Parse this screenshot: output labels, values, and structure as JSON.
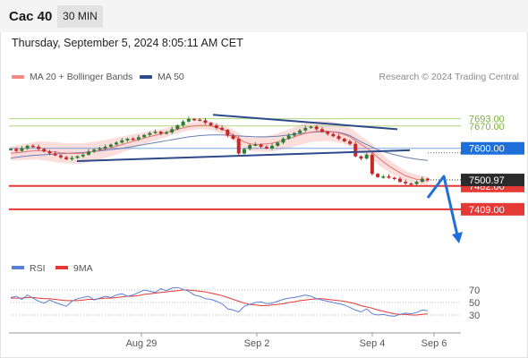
{
  "header": {
    "title": "Cac 40",
    "timeframe": "30 MIN"
  },
  "datetime": "Thursday, September 5, 2024 8:05:11 AM CET",
  "legend": {
    "items": [
      {
        "label": "MA 20 + Bollinger Bands",
        "color": "#f28b82"
      },
      {
        "label": "MA 50",
        "color": "#2d4a8a"
      }
    ],
    "credit": "Research © 2024 Trading Central"
  },
  "colors": {
    "up": "#2e7d32",
    "down": "#c62828",
    "resistance": "#aed581",
    "support": "#e53935",
    "pivot": "#1e6fd9",
    "trend": "#2d4a8a",
    "rsi": "#5c7fd6",
    "rsi_ma": "#e53935"
  },
  "chart_data": [
    {
      "type": "candlestick",
      "title": "Cac 40",
      "timeframe": "30 MIN",
      "x_ticks": [
        "Aug 29",
        "Sep 2",
        "Sep 4",
        "Sep 6"
      ],
      "ylim": [
        7330,
        7790
      ],
      "levels": [
        {
          "value": 7693.0,
          "label": "7693.00",
          "kind": "resistance"
        },
        {
          "value": 7670.0,
          "label": "7670.00",
          "kind": "resistance"
        },
        {
          "value": 7600.0,
          "label": "7600.00",
          "kind": "pivot"
        },
        {
          "value": 7482.0,
          "label": "7482.00",
          "kind": "support"
        },
        {
          "value": 7409.0,
          "label": "7409.00",
          "kind": "support"
        }
      ],
      "last_price": {
        "value": 7500.97,
        "label": "7500.97"
      },
      "close_series": [
        7598,
        7592,
        7600,
        7608,
        7605,
        7598,
        7590,
        7584,
        7578,
        7572,
        7566,
        7570,
        7575,
        7580,
        7590,
        7596,
        7600,
        7605,
        7612,
        7618,
        7625,
        7630,
        7628,
        7635,
        7642,
        7648,
        7652,
        7646,
        7650,
        7660,
        7672,
        7684,
        7692,
        7690,
        7688,
        7680,
        7672,
        7664,
        7658,
        7640,
        7630,
        7584,
        7598,
        7610,
        7612,
        7605,
        7600,
        7608,
        7618,
        7630,
        7640,
        7648,
        7656,
        7664,
        7668,
        7660,
        7652,
        7645,
        7638,
        7630,
        7622,
        7614,
        7575,
        7568,
        7580,
        7520,
        7510,
        7512,
        7508,
        7505,
        7495,
        7490,
        7488,
        7495,
        7505,
        7501
      ],
      "ma20": [
        7585,
        7586,
        7588,
        7590,
        7592,
        7593,
        7592,
        7590,
        7588,
        7586,
        7585,
        7584,
        7584,
        7585,
        7587,
        7590,
        7594,
        7598,
        7602,
        7607,
        7612,
        7617,
        7622,
        7627,
        7632,
        7637,
        7641,
        7645,
        7650,
        7655,
        7660,
        7664,
        7668,
        7670,
        7672,
        7672,
        7670,
        7666,
        7660,
        7652,
        7642,
        7630,
        7620,
        7614,
        7612,
        7613,
        7614,
        7616,
        7620,
        7625,
        7630,
        7636,
        7642,
        7647,
        7651,
        7653,
        7654,
        7654,
        7652,
        7648,
        7643,
        7636,
        7624,
        7612,
        7602,
        7588,
        7572,
        7558,
        7545,
        7534,
        7524,
        7514,
        7508,
        7503,
        7500,
        7498
      ],
      "ma50": [
        7570,
        7572,
        7574,
        7576,
        7578,
        7579,
        7580,
        7581,
        7582,
        7583,
        7584,
        7585,
        7586,
        7587,
        7588,
        7590,
        7592,
        7594,
        7596,
        7598,
        7600,
        7603,
        7606,
        7609,
        7612,
        7615,
        7618,
        7621,
        7624,
        7627,
        7630,
        7633,
        7636,
        7638,
        7640,
        7641,
        7642,
        7642,
        7642,
        7641,
        7640,
        7639,
        7638,
        7637,
        7636,
        7636,
        7636,
        7637,
        7638,
        7640,
        7642,
        7644,
        7646,
        7648,
        7650,
        7651,
        7652,
        7652,
        7652,
        7650,
        7646,
        7640,
        7630,
        7620,
        7612,
        7604,
        7596,
        7590,
        7585,
        7580,
        7576,
        7572,
        7569,
        7566,
        7564,
        7562
      ]
    },
    {
      "type": "line",
      "title": "RSI",
      "ylim": [
        10,
        90
      ],
      "y_ticks": [
        70,
        50,
        30
      ],
      "series": [
        {
          "name": "RSI",
          "values": [
            58,
            60,
            55,
            62,
            57,
            52,
            49,
            54,
            50,
            47,
            44,
            52,
            56,
            58,
            60,
            54,
            57,
            60,
            58,
            62,
            64,
            60,
            62,
            66,
            70,
            68,
            66,
            72,
            69,
            73,
            74,
            71,
            68,
            62,
            60,
            56,
            55,
            52,
            48,
            40,
            38,
            35,
            44,
            47,
            50,
            51,
            48,
            49,
            52,
            55,
            57,
            58,
            60,
            62,
            60,
            56,
            54,
            52,
            50,
            48,
            46,
            42,
            38,
            35,
            40,
            32,
            30,
            31,
            29,
            28,
            31,
            33,
            32,
            34,
            38,
            37
          ]
        },
        {
          "name": "9MA",
          "values": [
            57,
            57,
            57,
            58,
            58,
            57,
            56,
            56,
            55,
            54,
            53,
            53,
            53,
            54,
            55,
            55,
            56,
            57,
            57,
            58,
            59,
            60,
            60,
            61,
            63,
            64,
            65,
            66,
            67,
            68,
            69,
            70,
            70,
            69,
            68,
            67,
            65,
            63,
            61,
            58,
            55,
            52,
            49,
            47,
            46,
            45,
            45,
            46,
            47,
            48,
            50,
            51,
            53,
            54,
            55,
            56,
            56,
            55,
            54,
            53,
            52,
            50,
            48,
            45,
            43,
            41,
            38,
            36,
            34,
            32,
            31,
            31,
            30,
            30,
            31,
            32
          ]
        }
      ]
    }
  ]
}
